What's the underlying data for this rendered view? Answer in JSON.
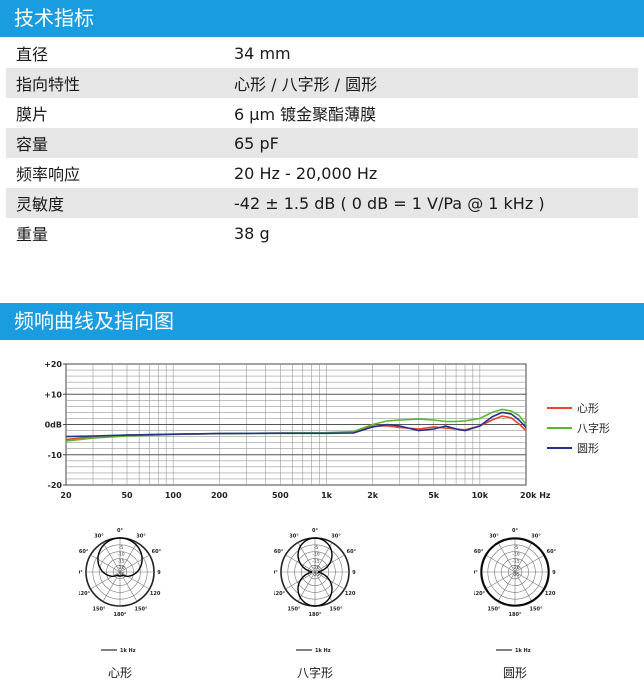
{
  "specs": {
    "title": "技术指标",
    "rows": [
      {
        "label": "直径",
        "value": "34 mm"
      },
      {
        "label": "指向特性",
        "value": "心形 / 八字形 / 圆形"
      },
      {
        "label": "膜片",
        "value": "6 μm 镀金聚酯薄膜"
      },
      {
        "label": "容量",
        "value": "65 pF"
      },
      {
        "label": "频率响应",
        "value": "20 Hz - 20,000 Hz"
      },
      {
        "label": "灵敏度",
        "value": "-42 ± 1.5 dB ( 0 dB = 1 V/Pa @ 1 kHz )"
      },
      {
        "label": "重量",
        "value": "38 g"
      }
    ]
  },
  "section2": {
    "title": "频响曲线及指向图"
  },
  "chart_data": {
    "type": "line",
    "x_scale": "log",
    "xlim": [
      20,
      20000
    ],
    "ylim": [
      -20,
      20
    ],
    "x_ticks": [
      20,
      50,
      100,
      200,
      500,
      1000,
      2000,
      5000,
      10000,
      20000
    ],
    "x_tick_labels": [
      "20",
      "50",
      "100",
      "200",
      "500",
      "1k",
      "2k",
      "5k",
      "10k",
      "20k Hz"
    ],
    "y_ticks": [
      20,
      10,
      0,
      -10,
      -20
    ],
    "y_tick_labels": [
      "+20",
      "+10",
      "0dB",
      "-10",
      "-20"
    ],
    "grid": true,
    "legend_position": "right",
    "x": [
      20,
      30,
      50,
      100,
      200,
      500,
      1000,
      1500,
      2000,
      2500,
      3000,
      4000,
      5000,
      6000,
      7000,
      8000,
      10000,
      12000,
      14000,
      16000,
      18000,
      20000
    ],
    "series": [
      {
        "name": "心形",
        "color": "#e8452a",
        "values": [
          -5,
          -4,
          -3.5,
          -3.2,
          -3,
          -2.8,
          -2.8,
          -2.5,
          -0.5,
          -0.5,
          -1,
          -1.5,
          -0.8,
          -1.2,
          -1.5,
          -1.8,
          -0.5,
          1.5,
          2.8,
          2.2,
          0.2,
          -2
        ]
      },
      {
        "name": "八字形",
        "color": "#5cb82e",
        "values": [
          -5.5,
          -4.5,
          -3.8,
          -3.3,
          -3,
          -2.8,
          -2.7,
          -2.3,
          0,
          1.2,
          1.5,
          1.8,
          1.5,
          1,
          1,
          1.2,
          2,
          4,
          5,
          4.5,
          3,
          0
        ]
      },
      {
        "name": "圆形",
        "color": "#22338f",
        "values": [
          -4,
          -3.8,
          -3.5,
          -3.2,
          -3,
          -2.9,
          -2.9,
          -2.8,
          -0.8,
          0,
          -0.5,
          -2,
          -1.5,
          -0.5,
          -1.5,
          -2,
          -0.5,
          2.5,
          4,
          3.5,
          1.5,
          -1
        ]
      }
    ]
  },
  "polar": {
    "angle_labels": [
      "0°",
      "30°",
      "30°",
      "60°",
      "60°",
      "90°",
      "90°",
      "120°",
      "120°",
      "150°",
      "150°",
      "180°"
    ],
    "ring_labels": [
      "-5",
      "-10",
      "-15",
      "-20",
      "-25"
    ],
    "legend_freq": "1k Hz",
    "patterns": [
      {
        "name": "心形",
        "kind": "cardioid"
      },
      {
        "name": "八字形",
        "kind": "figure8"
      },
      {
        "name": "圆形",
        "kind": "omni"
      }
    ]
  }
}
